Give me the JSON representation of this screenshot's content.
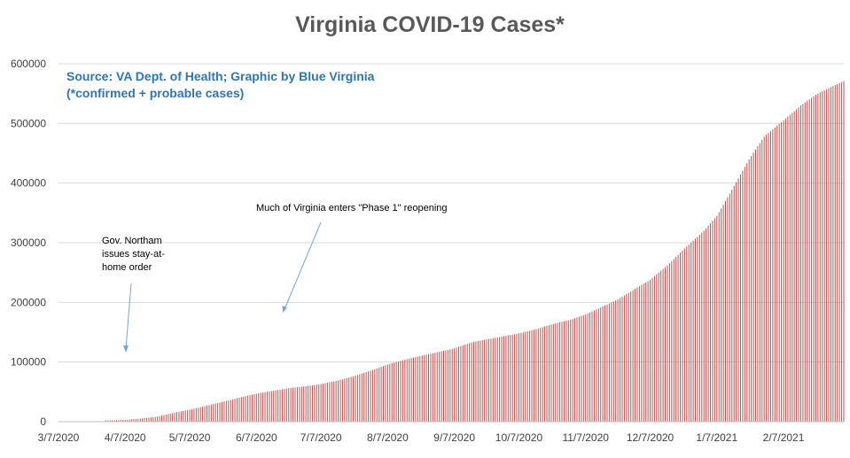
{
  "chart_data": {
    "type": "bar",
    "title": "Virginia COVID-19 Cases*",
    "source_line1": "Source: VA Dept. of Health; Graphic by Blue Virginia",
    "source_line2": "(*confirmed + probable cases)",
    "xlabel": "",
    "ylabel": "",
    "ylim": [
      0,
      600000
    ],
    "yticks": [
      0,
      100000,
      200000,
      300000,
      400000,
      500000,
      600000
    ],
    "ytick_labels": [
      "0",
      "100000",
      "200000",
      "300000",
      "400000",
      "500000",
      "600000"
    ],
    "xtick_labels": [
      "3/7/2020",
      "4/7/2020",
      "5/7/2020",
      "6/7/2020",
      "7/7/2020",
      "8/7/2020",
      "9/7/2020",
      "10/7/2020",
      "11/7/2020",
      "12/7/2020",
      "1/7/2021",
      "2/7/2021"
    ],
    "xtick_dates": [
      "2020-03-07",
      "2020-04-07",
      "2020-05-07",
      "2020-06-07",
      "2020-07-07",
      "2020-08-07",
      "2020-09-07",
      "2020-10-07",
      "2020-11-07",
      "2020-12-07",
      "2021-01-07",
      "2021-02-07"
    ],
    "x_range": [
      "2020-03-07",
      "2021-03-07"
    ],
    "grid": true,
    "legend": "none",
    "bar_color": "#c0504d",
    "series": [
      {
        "points": [
          [
            "2020-03-07",
            0
          ],
          [
            "2020-04-07",
            3000
          ],
          [
            "2020-04-15",
            5500
          ],
          [
            "2020-04-22",
            8500
          ],
          [
            "2020-05-01",
            16000
          ],
          [
            "2020-05-07",
            20000
          ],
          [
            "2020-05-15",
            27000
          ],
          [
            "2020-05-22",
            33000
          ],
          [
            "2020-06-01",
            42000
          ],
          [
            "2020-06-07",
            47000
          ],
          [
            "2020-06-15",
            52000
          ],
          [
            "2020-06-22",
            56000
          ],
          [
            "2020-07-01",
            60000
          ],
          [
            "2020-07-07",
            63000
          ],
          [
            "2020-07-15",
            69000
          ],
          [
            "2020-07-22",
            76000
          ],
          [
            "2020-08-01",
            88000
          ],
          [
            "2020-08-07",
            96000
          ],
          [
            "2020-08-15",
            104000
          ],
          [
            "2020-08-22",
            110000
          ],
          [
            "2020-09-01",
            118000
          ],
          [
            "2020-09-07",
            123000
          ],
          [
            "2020-09-15",
            133000
          ],
          [
            "2020-09-22",
            138000
          ],
          [
            "2020-10-01",
            144000
          ],
          [
            "2020-10-07",
            148000
          ],
          [
            "2020-10-15",
            155000
          ],
          [
            "2020-10-22",
            163000
          ],
          [
            "2020-11-01",
            172000
          ],
          [
            "2020-11-07",
            180000
          ],
          [
            "2020-11-15",
            193000
          ],
          [
            "2020-11-22",
            205000
          ],
          [
            "2020-12-01",
            225000
          ],
          [
            "2020-12-07",
            238000
          ],
          [
            "2020-12-15",
            262000
          ],
          [
            "2020-12-22",
            287000
          ],
          [
            "2021-01-01",
            320000
          ],
          [
            "2021-01-07",
            345000
          ],
          [
            "2021-01-15",
            395000
          ],
          [
            "2021-01-22",
            440000
          ],
          [
            "2021-01-29",
            478000
          ],
          [
            "2021-02-07",
            505000
          ],
          [
            "2021-02-15",
            530000
          ],
          [
            "2021-02-22",
            548000
          ],
          [
            "2021-03-01",
            561000
          ],
          [
            "2021-03-07",
            571000
          ]
        ]
      }
    ],
    "annotations": [
      {
        "lines": [
          "Gov. Northam",
          "issues stay-at-",
          "home order"
        ]
      },
      {
        "lines": [
          "Much of Virginia enters \"Phase 1\" reopening"
        ]
      }
    ],
    "text_color": "#595959",
    "source_color": "#2e75b6",
    "arrow_color": "#6fa8dc"
  }
}
